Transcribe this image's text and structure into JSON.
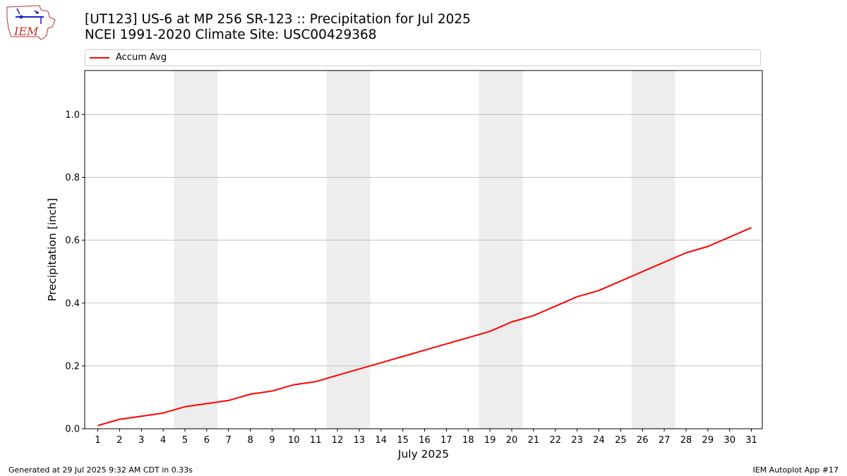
{
  "header": {
    "title_line1": "[UT123] US-6 at MP 256 SR-123  :: Precipitation for Jul 2025",
    "title_line2": "NCEI 1991-2020 Climate Site: USC00429368",
    "logo_text": "IEM"
  },
  "footer": {
    "generated": "Generated at 29 Jul 2025 9:32 AM CDT in 0.33s",
    "app": "IEM Autoplot App #17"
  },
  "colors": {
    "series": "#ff0000",
    "weekend_band": "#ededed",
    "grid": "#b0b0b0"
  },
  "chart_data": {
    "type": "line",
    "xlabel": "July 2025",
    "ylabel": "Precipitation [inch]",
    "xlim": [
      0.4,
      31.5
    ],
    "ylim": [
      0,
      1.14
    ],
    "yticks": [
      0.0,
      0.2,
      0.4,
      0.6,
      0.8,
      1.0
    ],
    "ytick_labels": [
      "0.0",
      "0.2",
      "0.4",
      "0.6",
      "0.8",
      "1.0"
    ],
    "xticks": [
      1,
      2,
      3,
      4,
      5,
      6,
      7,
      8,
      9,
      10,
      11,
      12,
      13,
      14,
      15,
      16,
      17,
      18,
      19,
      20,
      21,
      22,
      23,
      24,
      25,
      26,
      27,
      28,
      29,
      30,
      31
    ],
    "grid": "horizontal",
    "legend_position": "top",
    "weekend_days": [
      [
        5,
        6
      ],
      [
        12,
        13
      ],
      [
        19,
        20
      ],
      [
        26,
        27
      ]
    ],
    "x": [
      1,
      2,
      3,
      4,
      5,
      6,
      7,
      8,
      9,
      10,
      11,
      12,
      13,
      14,
      15,
      16,
      17,
      18,
      19,
      20,
      21,
      22,
      23,
      24,
      25,
      26,
      27,
      28,
      29,
      30,
      31
    ],
    "series": [
      {
        "name": "Accum Avg",
        "values": [
          0.01,
          0.03,
          0.04,
          0.05,
          0.07,
          0.08,
          0.09,
          0.11,
          0.12,
          0.14,
          0.15,
          0.17,
          0.19,
          0.21,
          0.23,
          0.25,
          0.27,
          0.29,
          0.31,
          0.34,
          0.36,
          0.39,
          0.42,
          0.44,
          0.47,
          0.5,
          0.53,
          0.56,
          0.58,
          0.61,
          0.64
        ]
      }
    ]
  }
}
